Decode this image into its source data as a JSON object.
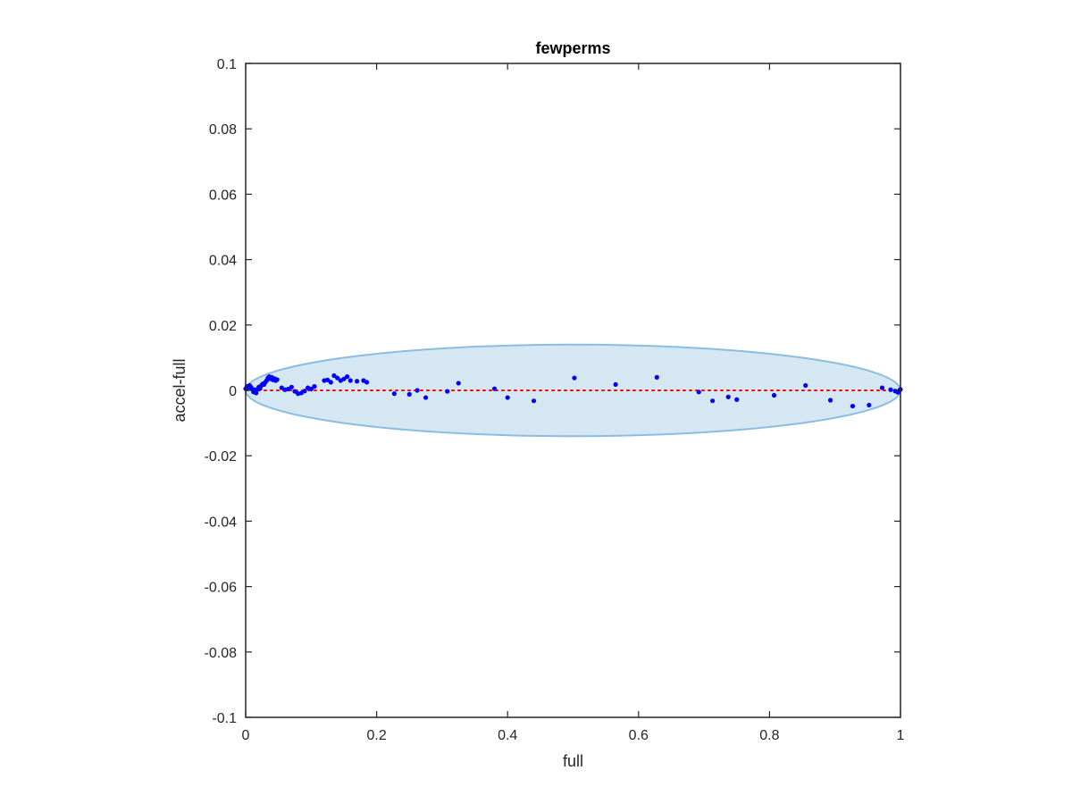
{
  "chart_data": {
    "type": "scatter",
    "title": "fewperms",
    "xlabel": "full",
    "ylabel": "accel-full",
    "xlim": [
      0,
      1
    ],
    "ylim": [
      -0.1,
      0.1
    ],
    "x_ticks": [
      0,
      0.2,
      0.4,
      0.6,
      0.8,
      1
    ],
    "x_tick_labels": [
      "0",
      "0.2",
      "0.4",
      "0.6",
      "0.8",
      "1"
    ],
    "y_ticks": [
      0.1,
      0.08,
      0.06,
      0.04,
      0.02,
      0,
      -0.02,
      -0.04,
      -0.06,
      -0.08,
      -0.1
    ],
    "y_tick_labels": [
      "0.1",
      "0.08",
      "0.06",
      "0.04",
      "0.02",
      "0",
      "-0.02",
      "-0.04",
      "-0.06",
      "-0.08",
      "-0.1"
    ],
    "grid": false,
    "box": true,
    "colors": {
      "points": "#0000ff",
      "reference_line": "#ff0000",
      "ellipse_fill": "#d6e7f4",
      "ellipse_edge": "#8bbde0",
      "axes": "#262626"
    },
    "reference_line": {
      "y": 0,
      "style": "dotted"
    },
    "ellipse": {
      "center": [
        0.5,
        0
      ],
      "x_radius": 0.5,
      "y_radius": 0.014
    },
    "series": [
      {
        "points": [
          [
            0.0,
            0.0005
          ],
          [
            0.002,
            0.0012
          ],
          [
            0.004,
            0.0008
          ],
          [
            0.006,
            0.0015
          ],
          [
            0.008,
            0.001
          ],
          [
            0.01,
            0.0004
          ],
          [
            0.012,
            -0.0005
          ],
          [
            0.014,
            0.0002
          ],
          [
            0.016,
            -0.0008
          ],
          [
            0.018,
            0.0003
          ],
          [
            0.02,
            0.001
          ],
          [
            0.022,
            0.0006
          ],
          [
            0.024,
            0.0015
          ],
          [
            0.026,
            0.002
          ],
          [
            0.028,
            0.0018
          ],
          [
            0.03,
            0.0025
          ],
          [
            0.032,
            0.003
          ],
          [
            0.034,
            0.0038
          ],
          [
            0.036,
            0.0042
          ],
          [
            0.038,
            0.0035
          ],
          [
            0.04,
            0.004
          ],
          [
            0.042,
            0.0032
          ],
          [
            0.044,
            0.0036
          ],
          [
            0.046,
            0.003
          ],
          [
            0.048,
            0.0033
          ],
          [
            0.055,
            0.0008
          ],
          [
            0.06,
            0.0002
          ],
          [
            0.065,
            0.0004
          ],
          [
            0.07,
            0.001
          ],
          [
            0.075,
            -0.0003
          ],
          [
            0.08,
            -0.001
          ],
          [
            0.085,
            -0.0008
          ],
          [
            0.09,
            -0.0002
          ],
          [
            0.095,
            0.0008
          ],
          [
            0.1,
            0.0004
          ],
          [
            0.105,
            0.0012
          ],
          [
            0.12,
            0.003
          ],
          [
            0.125,
            0.0032
          ],
          [
            0.13,
            0.0025
          ],
          [
            0.135,
            0.0045
          ],
          [
            0.14,
            0.0038
          ],
          [
            0.145,
            0.003
          ],
          [
            0.15,
            0.0035
          ],
          [
            0.155,
            0.0042
          ],
          [
            0.16,
            0.003
          ],
          [
            0.17,
            0.0028
          ],
          [
            0.18,
            0.003
          ],
          [
            0.185,
            0.0025
          ],
          [
            0.227,
            -0.001
          ],
          [
            0.25,
            -0.0012
          ],
          [
            0.262,
            0.0
          ],
          [
            0.275,
            -0.0022
          ],
          [
            0.308,
            -0.0003
          ],
          [
            0.325,
            0.0022
          ],
          [
            0.38,
            0.0005
          ],
          [
            0.4,
            -0.0022
          ],
          [
            0.44,
            -0.0032
          ],
          [
            0.502,
            0.0038
          ],
          [
            0.565,
            0.0018
          ],
          [
            0.628,
            0.004
          ],
          [
            0.692,
            -0.0005
          ],
          [
            0.713,
            -0.0032
          ],
          [
            0.737,
            -0.002
          ],
          [
            0.75,
            -0.0028
          ],
          [
            0.807,
            -0.0015
          ],
          [
            0.855,
            0.0015
          ],
          [
            0.893,
            -0.003
          ],
          [
            0.927,
            -0.0048
          ],
          [
            0.952,
            -0.0045
          ],
          [
            0.972,
            0.0008
          ],
          [
            0.985,
            0.0002
          ],
          [
            0.992,
            -0.0002
          ],
          [
            0.996,
            -0.0006
          ],
          [
            0.999,
            0.0001
          ],
          [
            1.0,
            0.0003
          ]
        ]
      }
    ]
  }
}
